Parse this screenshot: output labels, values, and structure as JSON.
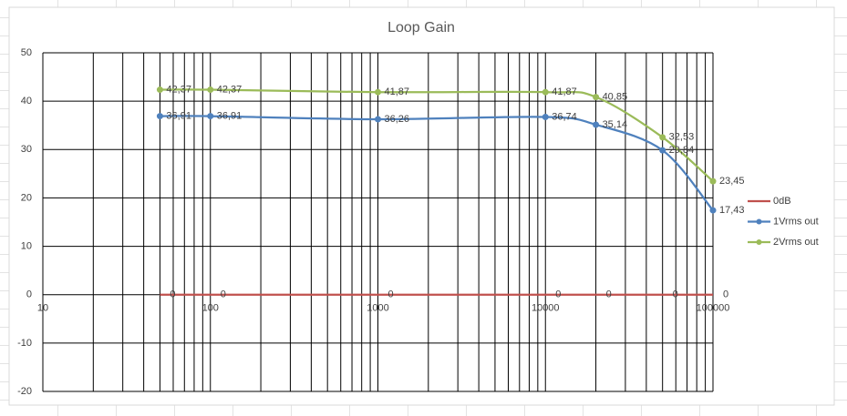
{
  "chart_data": {
    "type": "line",
    "title": "Loop Gain",
    "x": [
      50,
      100,
      1000,
      10000,
      20000,
      50000,
      100000
    ],
    "xlim": [
      10,
      100000
    ],
    "xticks": [
      10,
      100,
      1000,
      10000,
      100000
    ],
    "xlog": true,
    "ylim": [
      -20,
      50
    ],
    "yticks": [
      -20,
      -10,
      0,
      10,
      20,
      30,
      40,
      50
    ],
    "grid": true,
    "minor_grid": true,
    "smooth": true,
    "legend": "right",
    "series": [
      {
        "name": "0dB",
        "color": "#c0504d",
        "marker": false,
        "values": [
          0,
          0,
          0,
          0,
          0,
          0,
          0
        ]
      },
      {
        "name": "1Vrms out",
        "color": "#4f81bd",
        "marker": true,
        "values": [
          36.91,
          36.91,
          36.26,
          36.74,
          35.14,
          29.84,
          17.43
        ],
        "value_labels": [
          "36,91",
          "36,91",
          "36,26",
          "36,74",
          "35,14",
          "29,84",
          "17,43"
        ]
      },
      {
        "name": "2Vrms out",
        "color": "#9bbb59",
        "marker": true,
        "values": [
          42.37,
          42.37,
          41.87,
          41.87,
          40.85,
          32.53,
          23.45
        ],
        "value_labels": [
          "42,37",
          "42,37",
          "41,87",
          "41,87",
          "40,85",
          "32,53",
          "23,45"
        ]
      }
    ]
  }
}
